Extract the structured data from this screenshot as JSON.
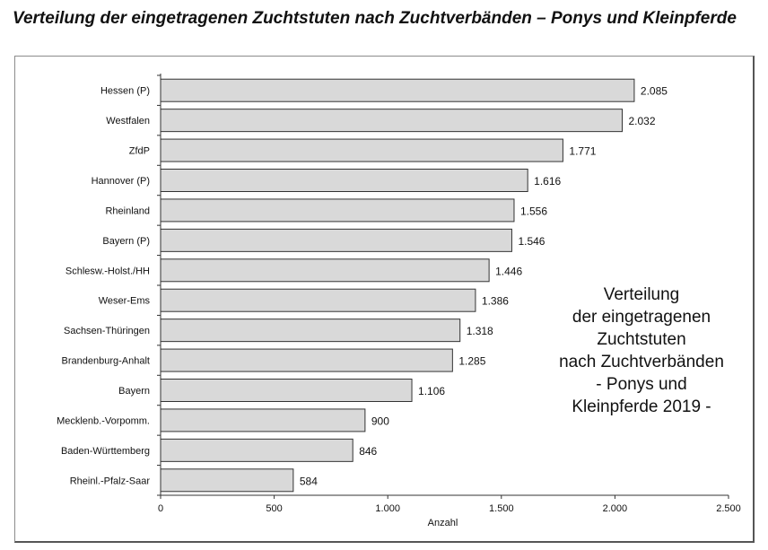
{
  "header": {
    "title": "Verteilung der eingetragenen Zuchtstuten nach Zuchtverbänden – Ponys und Kleinpferde"
  },
  "colors": {
    "bar_fill": "#d9d9d9",
    "bar_stroke": "#333333",
    "axis": "#333333",
    "text": "#111111"
  },
  "chart_data": {
    "type": "bar",
    "orientation": "horizontal",
    "categories": [
      "Hessen (P)",
      "Westfalen",
      "ZfdP",
      "Hannover (P)",
      "Rheinland",
      "Bayern (P)",
      "Schlesw.-Holst./HH",
      "Weser-Ems",
      "Sachsen-Thüringen",
      "Brandenburg-Anhalt",
      "Bayern",
      "Mecklenb.-Vorpomm.",
      "Baden-Württemberg",
      "Rheinl.-Pfalz-Saar"
    ],
    "values": [
      2085,
      2032,
      1771,
      1616,
      1556,
      1546,
      1446,
      1386,
      1318,
      1285,
      1106,
      900,
      846,
      584
    ],
    "value_labels": [
      "2.085",
      "2.032",
      "1.771",
      "1.616",
      "1.556",
      "1.546",
      "1.446",
      "1.386",
      "1.318",
      "1.285",
      "1.106",
      "900",
      "846",
      "584"
    ],
    "xlabel": "Anzahl",
    "ylabel": "",
    "xlim": [
      0,
      2500
    ],
    "xticks": [
      0,
      500,
      1000,
      1500,
      2000,
      2500
    ],
    "xtick_labels": [
      "0",
      "500",
      "1.000",
      "1.500",
      "2.000",
      "2.500"
    ],
    "grid": false,
    "legend": "none",
    "annotation": "Verteilung\nder eingetragenen\nZuchtstuten\nnach Zuchtverbänden\n- Ponys und\nKleinpferde 2019 -"
  }
}
